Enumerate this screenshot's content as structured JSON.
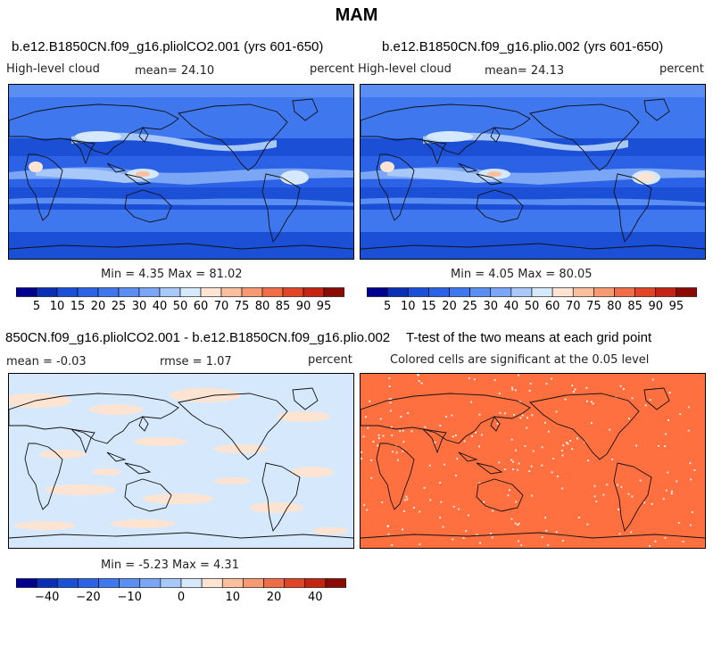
{
  "figure": {
    "title": "MAM",
    "panels": [
      {
        "title": "b.e12.B1850CN.f09_g16.pliolCO2.001 (yrs 601-650)",
        "left_label": "High-level cloud",
        "center_label": "mean=  24.10",
        "right_label": "percent",
        "stats": "Min =   4.35 Max =  81.02"
      },
      {
        "title": "b.e12.B1850CN.f09_g16.plio.002 (yrs 601-650)",
        "left_label": "High-level cloud",
        "center_label": "mean=  24.13",
        "right_label": "percent",
        "stats": "Min =   4.05 Max =  80.05"
      },
      {
        "title": "850CN.f09_g16.pliolCO2.001 - b.e12.B1850CN.f09_g16.plio.002",
        "left_label": "mean =  -0.03",
        "center_label": "rmse =   1.07",
        "right_label": "percent",
        "stats": "Min =  -5.23 Max =   4.31"
      },
      {
        "title": "T-test of the two means at each grid point",
        "subtitle": "Colored cells are significant at the 0.05 level"
      }
    ]
  },
  "chart_data": [
    {
      "type": "heatmap",
      "title": "b.e12.B1850CN.f09_g16.pliolCO2.001 (yrs 601-650)",
      "variable": "High-level cloud",
      "units": "percent",
      "mean": 24.1,
      "min": 4.35,
      "max": 81.02,
      "colorbar": {
        "levels": [
          5,
          10,
          15,
          20,
          25,
          30,
          40,
          50,
          60,
          70,
          75,
          80,
          85,
          90,
          95
        ],
        "tick_labels": [
          "5",
          "10",
          "15",
          "20",
          "25",
          "30",
          "40",
          "50",
          "60",
          "70",
          "75",
          "80",
          "85",
          "90",
          "95"
        ],
        "colors": [
          "#00008f",
          "#0a2fb5",
          "#1a4fd6",
          "#2c63e6",
          "#3f78ee",
          "#5b8ef2",
          "#7aa6f5",
          "#a7c8f8",
          "#d6e8fb",
          "#fde4d2",
          "#fbbf9e",
          "#f79a72",
          "#f06e47",
          "#e04526",
          "#c42513",
          "#8a0a04"
        ]
      }
    },
    {
      "type": "heatmap",
      "title": "b.e12.B1850CN.f09_g16.plio.002 (yrs 601-650)",
      "variable": "High-level cloud",
      "units": "percent",
      "mean": 24.13,
      "min": 4.05,
      "max": 80.05,
      "colorbar": {
        "levels": [
          5,
          10,
          15,
          20,
          25,
          30,
          40,
          50,
          60,
          70,
          75,
          80,
          85,
          90,
          95
        ],
        "tick_labels": [
          "5",
          "10",
          "15",
          "20",
          "25",
          "30",
          "40",
          "50",
          "60",
          "70",
          "75",
          "80",
          "85",
          "90",
          "95"
        ],
        "colors": [
          "#00008f",
          "#0a2fb5",
          "#1a4fd6",
          "#2c63e6",
          "#3f78ee",
          "#5b8ef2",
          "#7aa6f5",
          "#a7c8f8",
          "#d6e8fb",
          "#fde4d2",
          "#fbbf9e",
          "#f79a72",
          "#f06e47",
          "#e04526",
          "#c42513",
          "#8a0a04"
        ]
      }
    },
    {
      "type": "heatmap",
      "title": "850CN.f09_g16.pliolCO2.001 - b.e12.B1850CN.f09_g16.plio.002",
      "units": "percent",
      "mean": -0.03,
      "rmse": 1.07,
      "min": -5.23,
      "max": 4.31,
      "colorbar": {
        "tick_labels": [
          "-40",
          "-20",
          "-10",
          "0",
          "10",
          "20",
          "40"
        ],
        "tick_values": [
          -40,
          -20,
          -10,
          0,
          10,
          20,
          40
        ],
        "colors": [
          "#00008f",
          "#0a2fb5",
          "#1a4fd6",
          "#2c63e6",
          "#3f78ee",
          "#5b8ef2",
          "#7aa6f5",
          "#a7c8f8",
          "#d6e8fb",
          "#fde4d2",
          "#fbbf9e",
          "#f79a72",
          "#f06e47",
          "#e04526",
          "#c42513",
          "#8a0a04"
        ]
      }
    },
    {
      "type": "heatmap",
      "title": "T-test of the two means at each grid point",
      "subtitle": "Colored cells are significant at the 0.05 level",
      "fill_color": "#ff7040"
    }
  ]
}
